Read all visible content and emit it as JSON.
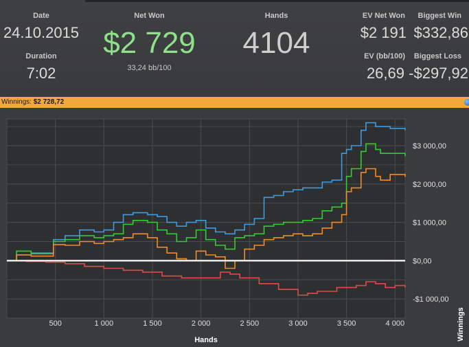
{
  "header": {
    "date_label": "Date",
    "date_value": "24.10.2015",
    "duration_label": "Duration",
    "duration_value": "7:02",
    "net_won_label": "Net Won",
    "net_won_value": "$2 729",
    "net_won_sub": "33,24 bb/100",
    "hands_label": "Hands",
    "hands_value": "4104",
    "ev_net_won_label": "EV Net Won",
    "ev_net_won_value": "$2 191",
    "biggest_win_label": "Biggest Win",
    "biggest_win_value": "$332,86",
    "ev_bb_label": "EV (bb/100)",
    "ev_bb_value": "26,69",
    "biggest_loss_label": "Biggest Loss",
    "biggest_loss_value": "-$297,92"
  },
  "winnings_bar": {
    "label": "Winnings:",
    "value": "$2 728,72"
  },
  "colors": {
    "net_won_green": "#8ee08a",
    "bar_orange": "#f2a93b",
    "blue": "#3f9be0",
    "green": "#33cc33",
    "orange": "#f08c2a",
    "red": "#e04a4a",
    "zero_line": "#ffffff"
  },
  "chart_data": {
    "type": "line",
    "title": "",
    "xlabel": "Hands",
    "ylabel": "Winnings",
    "xlim": [
      0,
      4104
    ],
    "ylim": [
      -1500,
      3700
    ],
    "x_ticks": [
      500,
      1000,
      1500,
      2000,
      2500,
      3000,
      3500,
      4000
    ],
    "x_tick_labels": [
      "500",
      "1 000",
      "1 500",
      "2 000",
      "2 500",
      "3 000",
      "3 500",
      "4 000"
    ],
    "y_ticks": [
      -1000,
      0,
      1000,
      2000,
      3000
    ],
    "y_tick_labels": [
      "-$1 000,00",
      "$0,00",
      "$1 000,00",
      "$2 000,00",
      "$3 000,00"
    ],
    "grid": true,
    "series": [
      {
        "color": "#3f9be0",
        "x": [
          0,
          100,
          250,
          480,
          600,
          750,
          900,
          1000,
          1100,
          1200,
          1300,
          1450,
          1550,
          1650,
          1750,
          1850,
          1950,
          2050,
          2150,
          2250,
          2350,
          2450,
          2550,
          2650,
          2750,
          2850,
          2950,
          3050,
          3150,
          3250,
          3350,
          3450,
          3500,
          3550,
          3650,
          3700,
          3800,
          3850,
          3950,
          4104
        ],
        "y": [
          0,
          150,
          200,
          550,
          650,
          800,
          750,
          800,
          1000,
          1200,
          1250,
          1200,
          1150,
          1000,
          900,
          1000,
          1050,
          850,
          750,
          700,
          800,
          950,
          1100,
          1650,
          1700,
          1800,
          1850,
          1900,
          1900,
          2050,
          2100,
          2800,
          2900,
          3000,
          3400,
          3600,
          3500,
          3500,
          3450,
          3400
        ]
      },
      {
        "color": "#33cc33",
        "x": [
          0,
          100,
          250,
          480,
          600,
          750,
          900,
          1000,
          1100,
          1200,
          1300,
          1450,
          1550,
          1650,
          1750,
          1850,
          1950,
          2050,
          2150,
          2250,
          2350,
          2450,
          2550,
          2650,
          2750,
          2850,
          2950,
          3050,
          3150,
          3250,
          3350,
          3450,
          3500,
          3550,
          3650,
          3700,
          3800,
          3850,
          3950,
          4104
        ],
        "y": [
          0,
          250,
          180,
          500,
          550,
          650,
          600,
          650,
          700,
          950,
          1050,
          1000,
          800,
          700,
          500,
          600,
          800,
          550,
          400,
          300,
          600,
          650,
          700,
          900,
          950,
          1000,
          1000,
          1050,
          1100,
          1300,
          1400,
          1500,
          2200,
          2400,
          2850,
          3050,
          2900,
          2800,
          2800,
          2729
        ]
      },
      {
        "color": "#f08c2a",
        "x": [
          0,
          100,
          250,
          480,
          600,
          750,
          900,
          1000,
          1100,
          1200,
          1300,
          1450,
          1550,
          1650,
          1750,
          1850,
          1950,
          2050,
          2150,
          2250,
          2350,
          2450,
          2550,
          2650,
          2750,
          2850,
          2950,
          3050,
          3150,
          3250,
          3350,
          3450,
          3500,
          3550,
          3650,
          3700,
          3800,
          3850,
          3950,
          4104
        ],
        "y": [
          0,
          150,
          120,
          420,
          400,
          500,
          450,
          500,
          550,
          600,
          700,
          600,
          350,
          200,
          50,
          0,
          250,
          150,
          100,
          -200,
          0,
          300,
          400,
          550,
          600,
          650,
          700,
          650,
          700,
          850,
          1000,
          1200,
          1800,
          1900,
          2300,
          2400,
          2200,
          2100,
          2250,
          2191
        ]
      },
      {
        "color": "#e04a4a",
        "x": [
          0,
          200,
          400,
          600,
          800,
          1000,
          1200,
          1400,
          1600,
          1800,
          2000,
          2200,
          2300,
          2400,
          2600,
          2800,
          3000,
          3100,
          3200,
          3400,
          3600,
          3700,
          3800,
          3900,
          4000,
          4104
        ],
        "y": [
          0,
          -20,
          -40,
          -80,
          -150,
          -200,
          -250,
          -300,
          -400,
          -450,
          -450,
          -300,
          -350,
          -450,
          -600,
          -750,
          -900,
          -850,
          -800,
          -700,
          -650,
          -550,
          -600,
          -700,
          -650,
          -700
        ]
      }
    ]
  }
}
